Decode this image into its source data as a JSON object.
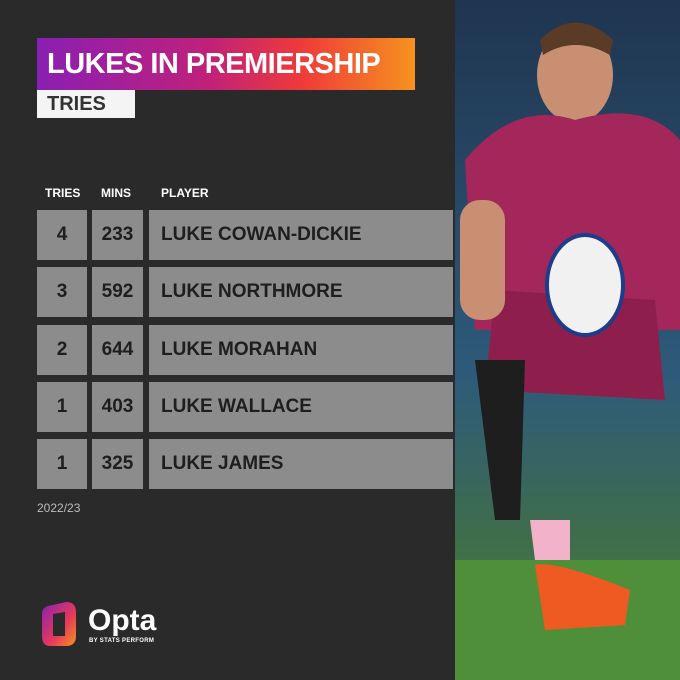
{
  "header": {
    "title": "LUKES IN PREMIERSHIP",
    "subtitle": "TRIES"
  },
  "table": {
    "columns": [
      "TRIES",
      "MINS",
      "PLAYER"
    ],
    "rows": [
      [
        "4",
        "233",
        "LUKE COWAN-DICKIE"
      ],
      [
        "3",
        "592",
        "LUKE NORTHMORE"
      ],
      [
        "2",
        "644",
        "LUKE MORAHAN"
      ],
      [
        "1",
        "403",
        "LUKE WALLACE"
      ],
      [
        "1",
        "325",
        "LUKE JAMES"
      ]
    ]
  },
  "footer": {
    "season": "2022/23",
    "brand": "Opta",
    "byline": "BY STATS PERFORM"
  }
}
